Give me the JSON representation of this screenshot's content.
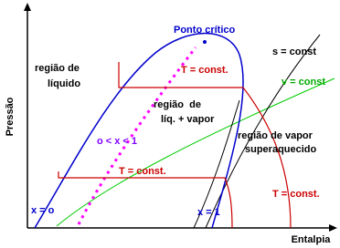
{
  "axes": {
    "y_label": "Pressão",
    "x_label": "Entalpia"
  },
  "labels": {
    "critical_point": "Ponto crítico",
    "entropy": "s = const",
    "liquid_region": [
      "região de",
      "líquido"
    ],
    "temperature_top": "T = const.",
    "volume": "v = const",
    "mixture_region": [
      "região  de",
      "líq. + vapor"
    ],
    "quality_range": "o < x < 1",
    "vapor_region": [
      "região de vapor",
      "superaquecido"
    ],
    "temperature_low": "T = const.",
    "temperature_right": "T = const.",
    "quality_zero": "x = o",
    "quality_one": "x = 1"
  }
}
